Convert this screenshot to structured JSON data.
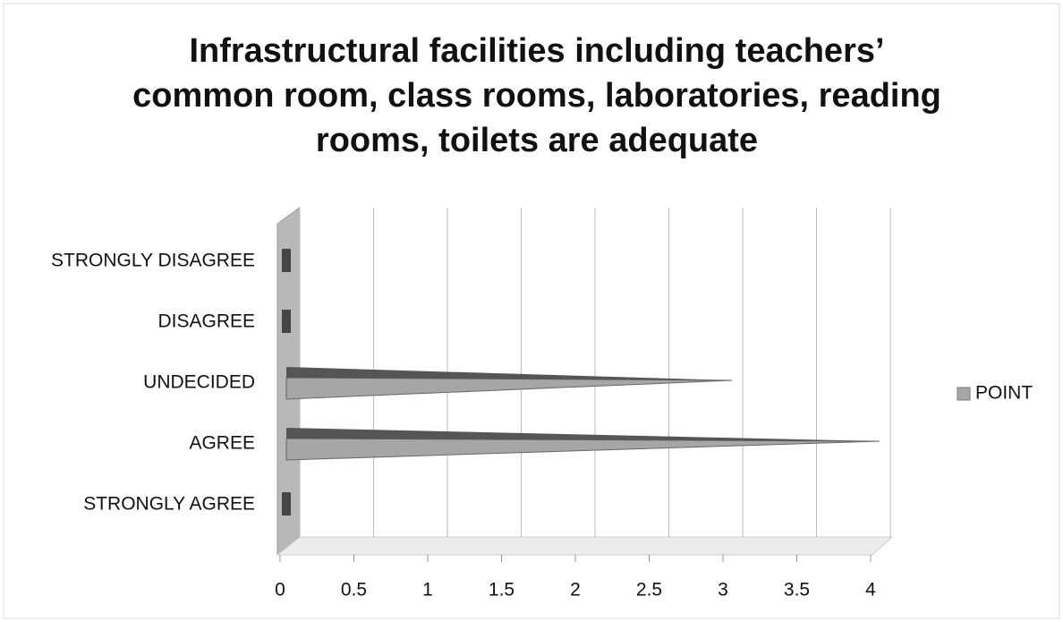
{
  "chart_data": {
    "type": "bar",
    "orientation": "horizontal",
    "title": "Infrastructural facilities including teachers’ common room, class rooms, laboratories, reading rooms, toilets are adequate",
    "categories": [
      "STRONGLY DISAGREE",
      "DISAGREE",
      "UNDECIDED",
      "AGREE",
      "STRONGLY AGREE"
    ],
    "series": [
      {
        "name": "POINT",
        "color": "#a6a6a6",
        "values": [
          0,
          0,
          3,
          4,
          0
        ]
      }
    ],
    "xlim": [
      0,
      4
    ],
    "xticks": [
      0,
      0.5,
      1,
      1.5,
      2,
      2.5,
      3,
      3.5,
      4
    ],
    "grid": true,
    "legend": "right"
  }
}
